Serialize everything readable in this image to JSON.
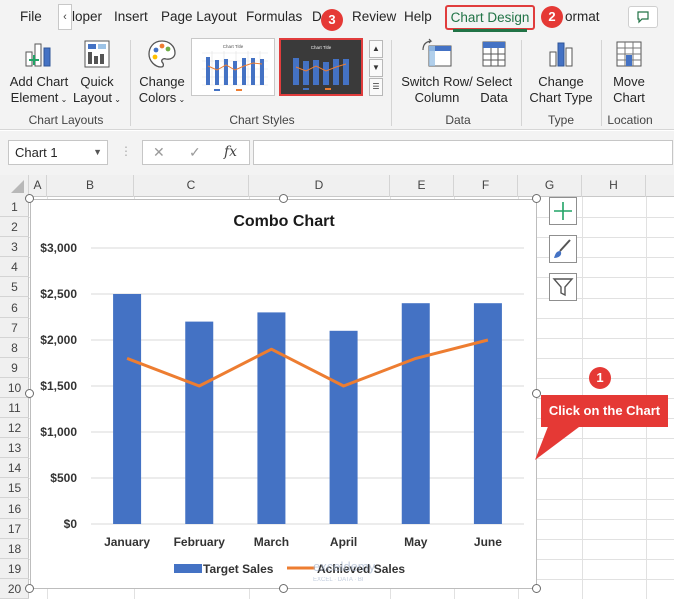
{
  "ribbon_tabs": [
    "File",
    "loper",
    "Insert",
    "Page Layout",
    "Formulas",
    "D",
    "Review",
    "Help",
    "Chart Design",
    "ormat"
  ],
  "active_tab": "Chart Design",
  "tab_scroll_glyph": "‹",
  "steps": {
    "step1": "1",
    "step2": "2",
    "step3": "3"
  },
  "ribbon": {
    "add_chart_element": [
      "Add Chart",
      "Element"
    ],
    "quick_layout": [
      "Quick",
      "Layout"
    ],
    "change_colors": [
      "Change",
      "Colors"
    ],
    "switch_row_column": [
      "Switch Row/",
      "Column"
    ],
    "select_data": [
      "Select",
      "Data"
    ],
    "change_chart_type": [
      "Change",
      "Chart Type"
    ],
    "move_chart": [
      "Move",
      "Chart"
    ],
    "groups": {
      "chart_layouts": "Chart Layouts",
      "chart_styles": "Chart Styles",
      "data": "Data",
      "type": "Type",
      "location": "Location"
    },
    "style_thumb_title": "Chart Title"
  },
  "formula_bar": {
    "name_box": "Chart 1",
    "fx": "fx",
    "cancel": "✕",
    "enter": "✓",
    "value": ""
  },
  "columns": [
    "A",
    "B",
    "C",
    "D",
    "E",
    "F",
    "G",
    "H"
  ],
  "rows": [
    "1",
    "2",
    "3",
    "4",
    "5",
    "6",
    "7",
    "8",
    "9",
    "10",
    "11",
    "12",
    "13",
    "14",
    "15",
    "16",
    "17",
    "18",
    "19",
    "20"
  ],
  "callout": "Click on the Chart",
  "watermark": "exceldemy",
  "watermark_sub": "EXCEL · DATA · BI",
  "colors": {
    "bar": "#4472c4",
    "line": "#ed7d31",
    "accent_green": "#217346",
    "badge": "#e53935"
  },
  "chart_data": {
    "type": "bar",
    "title": "Combo Chart",
    "categories": [
      "January",
      "February",
      "March",
      "April",
      "May",
      "June"
    ],
    "series": [
      {
        "name": "Target Sales",
        "type": "bar",
        "values": [
          2500,
          2200,
          2300,
          2100,
          2400,
          2400
        ]
      },
      {
        "name": "Achieved Sales",
        "type": "line",
        "values": [
          1800,
          1500,
          1900,
          1500,
          1800,
          2000
        ]
      }
    ],
    "yticks": [
      "$0",
      "$500",
      "$1,000",
      "$1,500",
      "$2,000",
      "$2,500",
      "$3,000"
    ],
    "ylim": [
      0,
      3000
    ],
    "grid": true,
    "legend": "bottom"
  }
}
